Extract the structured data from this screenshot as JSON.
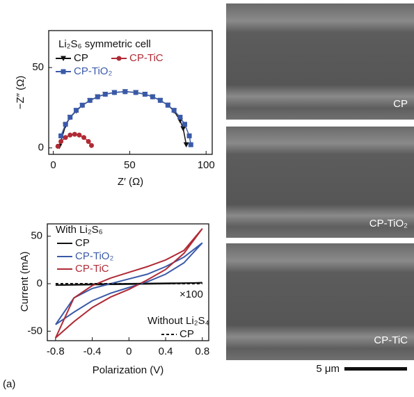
{
  "panel_label": "(a)",
  "images": [
    "CP",
    "CP-TiO₂",
    "CP-TiC"
  ],
  "scale_bar": "5 μm",
  "chart_data": [
    {
      "type": "scatter",
      "title": "Li₂S₆ symmetric cell",
      "xlabel": "Z′ (Ω)",
      "ylabel": "−Z″ (Ω)",
      "xlim": [
        -3,
        104
      ],
      "ylim": [
        -4,
        73
      ],
      "xticks": [
        0,
        50,
        100
      ],
      "yticks": [
        0,
        50
      ],
      "series": [
        {
          "name": "CP",
          "color": "#111111",
          "marker": "triangle-down",
          "x": [
            4,
            8,
            11,
            15,
            19,
            24,
            29,
            34,
            40,
            47,
            54,
            60,
            65,
            70,
            75,
            79,
            83,
            85,
            87
          ],
          "values": [
            1,
            14,
            19,
            23,
            26.5,
            29.5,
            31.8,
            33.4,
            34.5,
            35,
            34.5,
            33.4,
            31.8,
            29.6,
            26.6,
            23,
            17,
            12,
            2
          ]
        },
        {
          "name": "CP-TiO₂",
          "color": "#3a5aa8",
          "marker": "square",
          "x": [
            5,
            8,
            11,
            15,
            19,
            24,
            29,
            34,
            40,
            47,
            54,
            60,
            65,
            70,
            75,
            79,
            83,
            86,
            89,
            90
          ],
          "values": [
            7.5,
            14.7,
            19.1,
            23.4,
            26.6,
            29.6,
            31.8,
            33.4,
            34.5,
            35,
            34.5,
            33.4,
            31.8,
            29.6,
            26.6,
            23.4,
            19.1,
            14.7,
            7.5,
            2
          ]
        },
        {
          "name": "CP-TiC",
          "color": "#b02a35",
          "marker": "circle",
          "x": [
            3,
            5,
            8,
            11,
            14,
            17,
            20,
            23,
            25
          ],
          "values": [
            1,
            4,
            6.5,
            8,
            8.5,
            8,
            6.5,
            4,
            1.5
          ]
        }
      ]
    },
    {
      "type": "line",
      "xlabel": "Polarization (V)",
      "ylabel": "Current (mA)",
      "annotations": [
        "With Li₂S₆",
        "×100",
        "Without Li₂S₄"
      ],
      "xlim": [
        -0.89,
        0.87
      ],
      "ylim": [
        -60,
        63
      ],
      "xticks": [
        -0.8,
        -0.4,
        0,
        0.4,
        0.8
      ],
      "yticks": [
        -50,
        0,
        50
      ],
      "series": [
        {
          "name": "CP",
          "color": "#111111",
          "dash": false,
          "x": [
            -0.8,
            -0.4,
            0,
            0.4,
            0.8,
            0.4,
            0,
            -0.4,
            -0.8
          ],
          "values": [
            -1.5,
            -1,
            -0.5,
            0,
            1,
            0.5,
            0,
            -0.5,
            -1.5
          ]
        },
        {
          "name": "CP-TiO₂",
          "color": "#3a5aa8",
          "dash": false,
          "x": [
            -0.8,
            -0.6,
            -0.4,
            -0.2,
            0,
            0.2,
            0.4,
            0.6,
            0.8,
            0.6,
            0.4,
            0.2,
            0,
            -0.2,
            -0.4,
            -0.6,
            -0.8
          ],
          "values": [
            -43,
            -30,
            -18,
            -10,
            -4,
            2,
            10,
            22,
            43,
            28,
            18,
            10,
            5,
            0,
            -5,
            -15,
            -43
          ]
        },
        {
          "name": "CP-TiC",
          "color": "#b02a35",
          "dash": false,
          "x": [
            -0.8,
            -0.6,
            -0.4,
            -0.2,
            0,
            0.2,
            0.4,
            0.6,
            0.8,
            0.6,
            0.4,
            0.2,
            0,
            -0.2,
            -0.4,
            -0.6,
            -0.8
          ],
          "values": [
            -57,
            -40,
            -25,
            -14,
            -6,
            4,
            15,
            32,
            58,
            35,
            25,
            18,
            12,
            6,
            -2,
            -15,
            -57
          ]
        },
        {
          "name": "CP",
          "color": "#111111",
          "dash": true,
          "x": [
            -0.8,
            -0.4,
            0,
            0.4,
            0.8
          ],
          "values": [
            0,
            0,
            0,
            0,
            0
          ]
        }
      ]
    }
  ]
}
